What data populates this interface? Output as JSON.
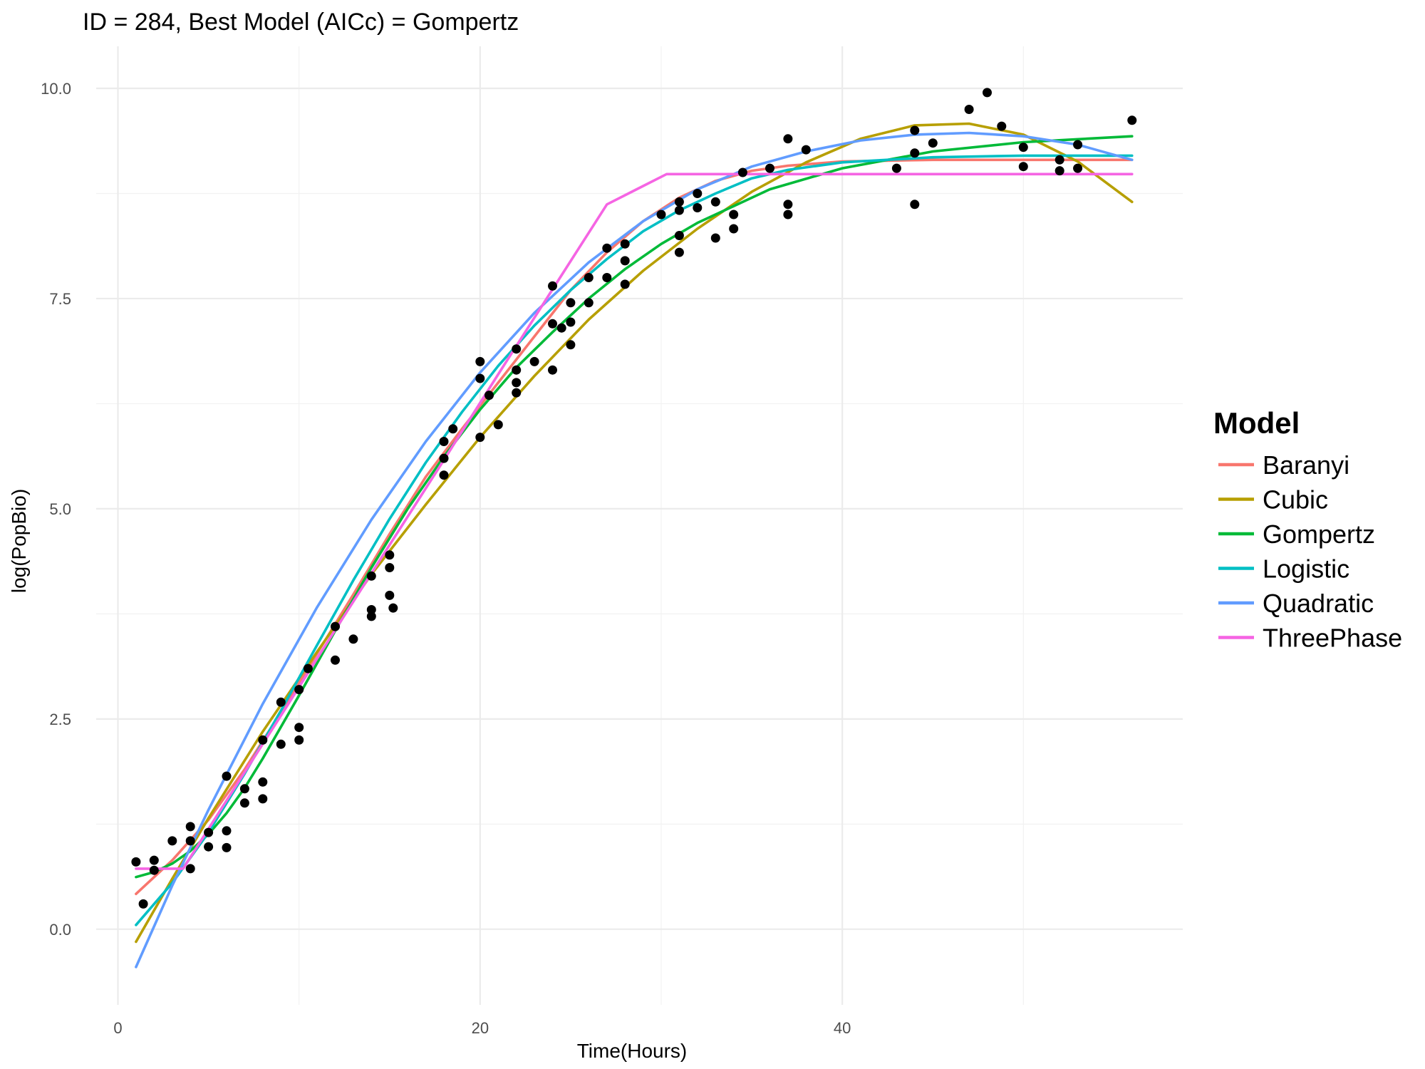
{
  "chart_data": {
    "type": "scatter",
    "title": "ID = 284, Best Model (AICc) = Gompertz",
    "xlabel": "Time(Hours)",
    "ylabel": "log(PopBio)",
    "xlim": [
      -1.2,
      58.8
    ],
    "ylim": [
      -0.9,
      10.5
    ],
    "x_ticks": [
      0,
      20,
      40
    ],
    "x_tick_labels": [
      "0",
      "20",
      "40"
    ],
    "y_ticks": [
      0.0,
      2.5,
      5.0,
      7.5,
      10.0
    ],
    "y_tick_labels": [
      "0.0",
      "2.5",
      "5.0",
      "7.5",
      "10.0"
    ],
    "grid": true,
    "legend": {
      "title": "Model",
      "position": "right",
      "entries": [
        {
          "label": "Baranyi",
          "color": "#F8766D"
        },
        {
          "label": "Cubic",
          "color": "#B79F00"
        },
        {
          "label": "Gompertz",
          "color": "#00BA38"
        },
        {
          "label": "Logistic",
          "color": "#00BFC4"
        },
        {
          "label": "Quadratic",
          "color": "#619CFF"
        },
        {
          "label": "ThreePhase",
          "color": "#F564E3"
        }
      ]
    },
    "points": [
      [
        1.0,
        0.8
      ],
      [
        1.4,
        0.3
      ],
      [
        2.0,
        0.82
      ],
      [
        2.0,
        0.7
      ],
      [
        3.0,
        1.05
      ],
      [
        4.0,
        1.22
      ],
      [
        4.0,
        1.05
      ],
      [
        4.0,
        0.72
      ],
      [
        5.0,
        0.98
      ],
      [
        5.0,
        1.15
      ],
      [
        6.0,
        1.82
      ],
      [
        6.0,
        1.17
      ],
      [
        6.0,
        0.97
      ],
      [
        7.0,
        1.67
      ],
      [
        7.0,
        1.5
      ],
      [
        8.0,
        1.75
      ],
      [
        8.0,
        1.55
      ],
      [
        8.0,
        2.25
      ],
      [
        9.0,
        2.7
      ],
      [
        9.0,
        2.2
      ],
      [
        10.0,
        2.4
      ],
      [
        10.0,
        2.25
      ],
      [
        10.0,
        2.85
      ],
      [
        10.5,
        3.1
      ],
      [
        12.0,
        3.2
      ],
      [
        12.0,
        3.6
      ],
      [
        13.0,
        3.45
      ],
      [
        14.0,
        3.72
      ],
      [
        14.0,
        3.8
      ],
      [
        14.0,
        4.2
      ],
      [
        15.0,
        3.97
      ],
      [
        15.0,
        4.45
      ],
      [
        15.0,
        4.3
      ],
      [
        15.2,
        3.82
      ],
      [
        18.0,
        5.6
      ],
      [
        18.0,
        5.8
      ],
      [
        18.0,
        5.4
      ],
      [
        18.5,
        5.95
      ],
      [
        20.0,
        6.75
      ],
      [
        20.0,
        6.55
      ],
      [
        20.0,
        5.85
      ],
      [
        20.5,
        6.35
      ],
      [
        21.0,
        6.0
      ],
      [
        22.0,
        6.9
      ],
      [
        22.0,
        6.65
      ],
      [
        22.0,
        6.5
      ],
      [
        22.0,
        6.38
      ],
      [
        23.0,
        6.75
      ],
      [
        24.0,
        7.65
      ],
      [
        24.0,
        7.2
      ],
      [
        24.0,
        6.65
      ],
      [
        24.5,
        7.15
      ],
      [
        25.0,
        7.45
      ],
      [
        25.0,
        7.22
      ],
      [
        25.0,
        6.95
      ],
      [
        26.0,
        7.75
      ],
      [
        26.0,
        7.45
      ],
      [
        27.0,
        8.1
      ],
      [
        27.0,
        7.75
      ],
      [
        28.0,
        8.15
      ],
      [
        28.0,
        7.95
      ],
      [
        28.0,
        7.67
      ],
      [
        30.0,
        8.5
      ],
      [
        31.0,
        8.65
      ],
      [
        31.0,
        8.55
      ],
      [
        31.0,
        8.25
      ],
      [
        31.0,
        8.05
      ],
      [
        32.0,
        8.75
      ],
      [
        32.0,
        8.58
      ],
      [
        33.0,
        8.65
      ],
      [
        33.0,
        8.22
      ],
      [
        34.0,
        8.5
      ],
      [
        34.0,
        8.33
      ],
      [
        34.5,
        9.0
      ],
      [
        36.0,
        9.05
      ],
      [
        37.0,
        9.4
      ],
      [
        37.0,
        8.62
      ],
      [
        37.0,
        8.5
      ],
      [
        38.0,
        9.27
      ],
      [
        43.0,
        9.05
      ],
      [
        44.0,
        9.5
      ],
      [
        44.0,
        9.23
      ],
      [
        44.0,
        8.62
      ],
      [
        45.0,
        9.35
      ],
      [
        47.0,
        9.75
      ],
      [
        48.0,
        9.95
      ],
      [
        48.8,
        9.55
      ],
      [
        50.0,
        9.3
      ],
      [
        50.0,
        9.07
      ],
      [
        52.0,
        9.15
      ],
      [
        52.0,
        9.02
      ],
      [
        53.0,
        9.05
      ],
      [
        53.0,
        9.33
      ],
      [
        56.0,
        9.62
      ]
    ],
    "series": [
      {
        "name": "Baranyi",
        "color": "#F8766D",
        "x": [
          1,
          3,
          5,
          7,
          9,
          11,
          13,
          15,
          17,
          19,
          21,
          23,
          25,
          27,
          29,
          31,
          33,
          35,
          37,
          40,
          45,
          50,
          56
        ],
        "values": [
          0.42,
          0.82,
          1.3,
          1.9,
          2.58,
          3.28,
          3.98,
          4.7,
          5.38,
          5.95,
          6.5,
          7.05,
          7.6,
          8.05,
          8.42,
          8.7,
          8.9,
          9.02,
          9.08,
          9.13,
          9.15,
          9.15,
          9.15
        ]
      },
      {
        "name": "Cubic",
        "color": "#B79F00",
        "x": [
          1,
          3,
          5,
          8,
          11,
          14,
          17,
          20,
          23,
          26,
          29,
          32,
          35,
          38,
          41,
          44,
          47,
          50,
          53,
          56
        ],
        "values": [
          -0.15,
          0.6,
          1.32,
          2.35,
          3.3,
          4.22,
          5.05,
          5.85,
          6.58,
          7.25,
          7.83,
          8.33,
          8.77,
          9.12,
          9.4,
          9.56,
          9.58,
          9.45,
          9.13,
          8.65
        ]
      },
      {
        "name": "Gompertz",
        "color": "#00BA38",
        "x": [
          1,
          2,
          3,
          4,
          5,
          6,
          7,
          8,
          10,
          12,
          14,
          16,
          18,
          20,
          22,
          24,
          26,
          28,
          30,
          32,
          34,
          36,
          40,
          45,
          50,
          56
        ],
        "values": [
          0.62,
          0.68,
          0.78,
          0.93,
          1.13,
          1.38,
          1.68,
          2.03,
          2.78,
          3.55,
          4.3,
          5.0,
          5.62,
          6.18,
          6.68,
          7.1,
          7.5,
          7.85,
          8.15,
          8.4,
          8.6,
          8.8,
          9.05,
          9.25,
          9.36,
          9.43
        ]
      },
      {
        "name": "Logistic",
        "color": "#00BFC4",
        "x": [
          1,
          3,
          5,
          7,
          9,
          11,
          13,
          15,
          17,
          19,
          21,
          23,
          25,
          27,
          29,
          31,
          33,
          35,
          37,
          40,
          45,
          50,
          56
        ],
        "values": [
          0.05,
          0.55,
          1.15,
          1.85,
          2.6,
          3.38,
          4.15,
          4.88,
          5.55,
          6.15,
          6.7,
          7.18,
          7.6,
          7.97,
          8.3,
          8.55,
          8.75,
          8.93,
          9.03,
          9.12,
          9.18,
          9.2,
          9.2
        ]
      },
      {
        "name": "Quadratic",
        "color": "#619CFF",
        "x": [
          1,
          3,
          5,
          8,
          11,
          14,
          17,
          20,
          23,
          26,
          29,
          32,
          35,
          38,
          41,
          44,
          47,
          50,
          53,
          56
        ],
        "values": [
          -0.45,
          0.52,
          1.42,
          2.68,
          3.83,
          4.87,
          5.8,
          6.62,
          7.33,
          7.93,
          8.42,
          8.8,
          9.07,
          9.25,
          9.38,
          9.45,
          9.47,
          9.43,
          9.33,
          9.15
        ]
      },
      {
        "name": "ThreePhase",
        "color": "#F564E3",
        "x": [
          1,
          3.6,
          6,
          9,
          12,
          15,
          18,
          21,
          24,
          27,
          30.3,
          35,
          40,
          45,
          50,
          56
        ],
        "values": [
          0.72,
          0.72,
          1.53,
          2.54,
          3.56,
          4.57,
          5.58,
          6.6,
          7.61,
          8.62,
          8.98,
          8.98,
          8.98,
          8.98,
          8.98,
          8.98
        ]
      }
    ]
  }
}
